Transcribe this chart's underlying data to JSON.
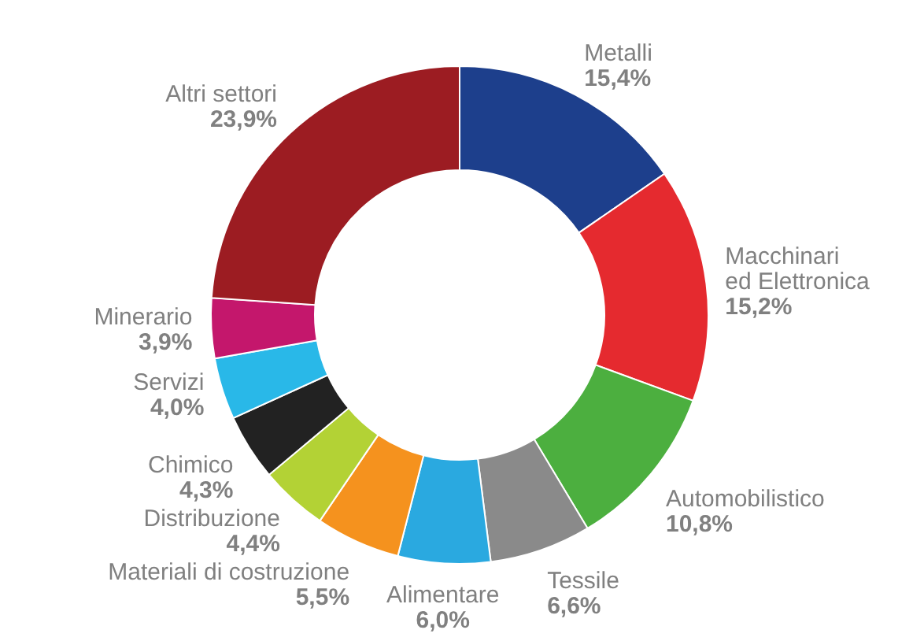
{
  "chart_data": {
    "type": "donut",
    "categories": [
      "Metalli",
      "Macchinari\ned Elettronica",
      "Automobilistico",
      "Tessile",
      "Alimentare",
      "Materiali di costruzione",
      "Distribuzione",
      "Chimico",
      "Servizi",
      "Minerario",
      "Altri settori"
    ],
    "values": [
      15.4,
      15.2,
      10.8,
      6.6,
      6.0,
      5.5,
      4.4,
      4.3,
      4.0,
      3.9,
      23.9
    ],
    "value_labels": [
      "15,4%",
      "15,2%",
      "10,8%",
      "6,6%",
      "6,0%",
      "5,5%",
      "4,4%",
      "4,3%",
      "4,0%",
      "3,9%",
      "23,9%"
    ],
    "colors": [
      "#1d3f8c",
      "#e52a2f",
      "#4caf3f",
      "#8a8a8a",
      "#2aa9e0",
      "#f5921e",
      "#b3d235",
      "#222222",
      "#29b8e8",
      "#c4176c",
      "#9c1c22"
    ]
  }
}
